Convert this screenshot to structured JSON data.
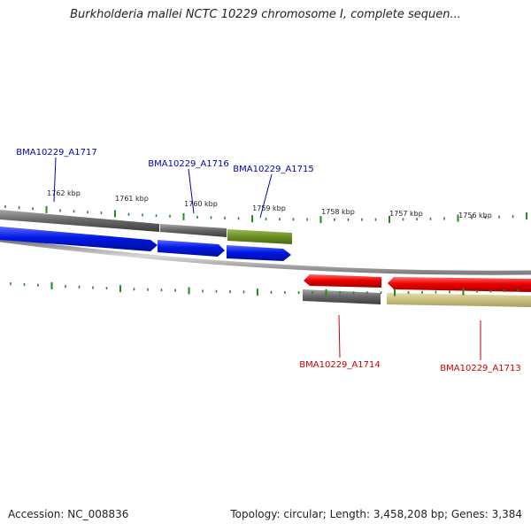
{
  "title": "Burkholderia mallei NCTC 10229 chromosome I, complete sequen...",
  "footer": {
    "accession": "Accession: NC_008836",
    "summary": "Topology: circular; Length: 3,458,208 bp; Genes: 3,384"
  },
  "colors": {
    "forward_gene": "#0018e6",
    "reverse_gene": "#ee0000",
    "forward_label": "#0000bb",
    "reverse_label": "#cc0000",
    "gray_feature": "#6a6a6a",
    "olive_feature": "#6b8e23",
    "khaki_feature": "#c8c080",
    "tick": "#228b22",
    "backbone": "#9a9a9a"
  },
  "scale": {
    "unit": "kbp",
    "labels": [
      "1762 kbp",
      "1761 kbp",
      "1760 kbp",
      "1759 kbp",
      "1758 kbp",
      "1757 kbp",
      "1756 kbp"
    ]
  },
  "genes": [
    {
      "id": "BMA10229_A1717",
      "strand": "forward"
    },
    {
      "id": "BMA10229_A1716",
      "strand": "forward"
    },
    {
      "id": "BMA10229_A1715",
      "strand": "forward"
    },
    {
      "id": "BMA10229_A1714",
      "strand": "reverse"
    },
    {
      "id": "BMA10229_A1713",
      "strand": "reverse"
    }
  ]
}
